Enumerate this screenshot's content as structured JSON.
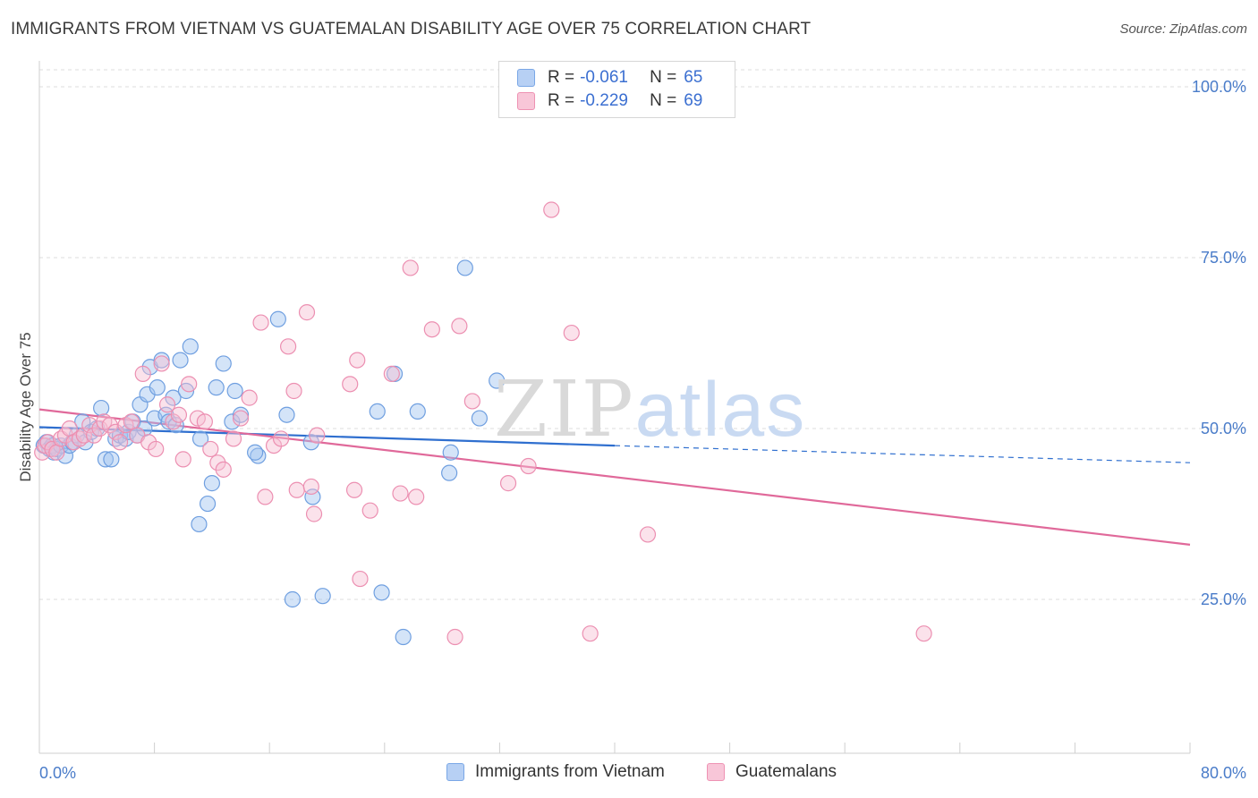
{
  "title": "IMMIGRANTS FROM VIETNAM VS GUATEMALAN DISABILITY AGE OVER 75 CORRELATION CHART",
  "source": "Source: ZipAtlas.com",
  "watermark": {
    "zip": "ZIP",
    "atlas": "atlas"
  },
  "legend": {
    "r_label": "R =",
    "n_label": "N =",
    "rows": [
      {
        "r": "-0.061",
        "n": "65",
        "color": "#7aa7e6",
        "fill": "#b7d0f4"
      },
      {
        "r": "-0.229",
        "n": "69",
        "color": "#ee92b3",
        "fill": "#f8c6d8"
      }
    ]
  },
  "bottom_legend": [
    "Immigrants from Vietnam",
    "Guatemalans"
  ],
  "chart_data": {
    "type": "scatter",
    "ylabel": "Disability Age Over 75",
    "xlim": [
      0,
      80
    ],
    "ylim": [
      0,
      100
    ],
    "x_tick_labels": [
      "0.0%",
      "80.0%"
    ],
    "y_ticks": [
      25,
      50,
      75,
      100
    ],
    "y_tick_labels": [
      "25.0%",
      "50.0%",
      "75.0%",
      "100.0%"
    ],
    "grid": true,
    "colors": {
      "vietnam": "#4a86d8",
      "guatemala": "#e8709b",
      "trend_vietnam": "#2f6fcf",
      "trend_guatemala": "#e0699a"
    },
    "series": [
      {
        "name": "Immigrants from Vietnam",
        "points": [
          [
            0.3,
            47.5
          ],
          [
            0.5,
            48
          ],
          [
            0.7,
            47
          ],
          [
            0.9,
            47.5
          ],
          [
            1.0,
            46.5
          ],
          [
            1.2,
            47
          ],
          [
            1.5,
            47.5
          ],
          [
            1.8,
            46
          ],
          [
            2.1,
            47.5
          ],
          [
            2.3,
            48
          ],
          [
            2.6,
            49
          ],
          [
            3.0,
            51
          ],
          [
            3.2,
            48
          ],
          [
            3.6,
            49.5
          ],
          [
            4.0,
            50
          ],
          [
            4.3,
            53
          ],
          [
            4.6,
            45.5
          ],
          [
            5.0,
            45.5
          ],
          [
            5.3,
            48.5
          ],
          [
            5.6,
            49
          ],
          [
            6.0,
            48.5
          ],
          [
            6.2,
            49.5
          ],
          [
            6.5,
            51
          ],
          [
            6.8,
            49
          ],
          [
            7.0,
            53.5
          ],
          [
            7.3,
            50
          ],
          [
            7.5,
            55
          ],
          [
            7.7,
            59
          ],
          [
            8.0,
            51.5
          ],
          [
            8.2,
            56
          ],
          [
            8.5,
            60
          ],
          [
            8.8,
            52
          ],
          [
            9.0,
            51
          ],
          [
            9.3,
            54.5
          ],
          [
            9.5,
            50.5
          ],
          [
            9.8,
            60
          ],
          [
            10.2,
            55.5
          ],
          [
            10.5,
            62
          ],
          [
            11.2,
            48.5
          ],
          [
            12.0,
            42
          ],
          [
            12.3,
            56
          ],
          [
            12.8,
            59.5
          ],
          [
            13.4,
            51
          ],
          [
            13.6,
            55.5
          ],
          [
            14.0,
            52
          ],
          [
            15.2,
            46
          ],
          [
            16.6,
            66
          ],
          [
            17.2,
            52
          ],
          [
            18.9,
            48
          ],
          [
            19.0,
            40
          ],
          [
            15.0,
            46.5
          ],
          [
            11.7,
            39
          ],
          [
            11.1,
            36
          ],
          [
            17.6,
            25
          ],
          [
            19.7,
            25.5
          ],
          [
            23.8,
            26
          ],
          [
            23.5,
            52.5
          ],
          [
            24.7,
            58
          ],
          [
            26.3,
            52.5
          ],
          [
            28.6,
            46.5
          ],
          [
            28.5,
            43.5
          ],
          [
            29.6,
            73.5
          ],
          [
            30.6,
            51.5
          ],
          [
            31.8,
            57
          ],
          [
            25.3,
            19.5
          ]
        ]
      },
      {
        "name": "Guatemalans",
        "points": [
          [
            0.2,
            46.5
          ],
          [
            0.4,
            47.5
          ],
          [
            0.6,
            48
          ],
          [
            0.9,
            47
          ],
          [
            1.2,
            46.5
          ],
          [
            1.5,
            48.5
          ],
          [
            1.8,
            49
          ],
          [
            2.1,
            50
          ],
          [
            2.4,
            48
          ],
          [
            2.8,
            48.5
          ],
          [
            3.1,
            49
          ],
          [
            3.5,
            50.5
          ],
          [
            3.8,
            49
          ],
          [
            4.2,
            50
          ],
          [
            4.5,
            51
          ],
          [
            4.9,
            50.5
          ],
          [
            5.3,
            49.5
          ],
          [
            5.6,
            48
          ],
          [
            6.0,
            50.5
          ],
          [
            6.4,
            51
          ],
          [
            6.8,
            49
          ],
          [
            7.2,
            58
          ],
          [
            7.6,
            48
          ],
          [
            8.1,
            47
          ],
          [
            8.5,
            59.5
          ],
          [
            8.9,
            53.5
          ],
          [
            9.3,
            51
          ],
          [
            9.7,
            52
          ],
          [
            10.0,
            45.5
          ],
          [
            10.4,
            56.5
          ],
          [
            11.0,
            51.5
          ],
          [
            11.5,
            51
          ],
          [
            11.9,
            47
          ],
          [
            12.4,
            45
          ],
          [
            12.8,
            44
          ],
          [
            13.5,
            48.5
          ],
          [
            14.0,
            51.5
          ],
          [
            14.6,
            54.5
          ],
          [
            15.4,
            65.5
          ],
          [
            15.7,
            40
          ],
          [
            16.3,
            47.5
          ],
          [
            16.8,
            48.5
          ],
          [
            17.3,
            62
          ],
          [
            17.7,
            55.5
          ],
          [
            17.9,
            41
          ],
          [
            18.6,
            67
          ],
          [
            18.9,
            41.5
          ],
          [
            19.1,
            37.5
          ],
          [
            19.3,
            49
          ],
          [
            21.6,
            56.5
          ],
          [
            21.9,
            41
          ],
          [
            22.1,
            60
          ],
          [
            22.3,
            28
          ],
          [
            23.0,
            38
          ],
          [
            24.5,
            58
          ],
          [
            25.1,
            40.5
          ],
          [
            25.8,
            73.5
          ],
          [
            26.2,
            40
          ],
          [
            27.3,
            64.5
          ],
          [
            28.9,
            19.5
          ],
          [
            29.2,
            65
          ],
          [
            30.1,
            54
          ],
          [
            32.6,
            42
          ],
          [
            34.0,
            44.5
          ],
          [
            35.6,
            82
          ],
          [
            37.0,
            64
          ],
          [
            38.3,
            20
          ],
          [
            42.3,
            34.5
          ],
          [
            61.5,
            20
          ]
        ]
      }
    ],
    "trend_lines": [
      {
        "name": "Immigrants from Vietnam",
        "x": [
          0,
          40
        ],
        "y": [
          50.2,
          47.5
        ],
        "dashed_extension_to": [
          80,
          45
        ]
      },
      {
        "name": "Guatemalans",
        "x": [
          0,
          80
        ],
        "y": [
          52.8,
          33
        ]
      }
    ]
  }
}
